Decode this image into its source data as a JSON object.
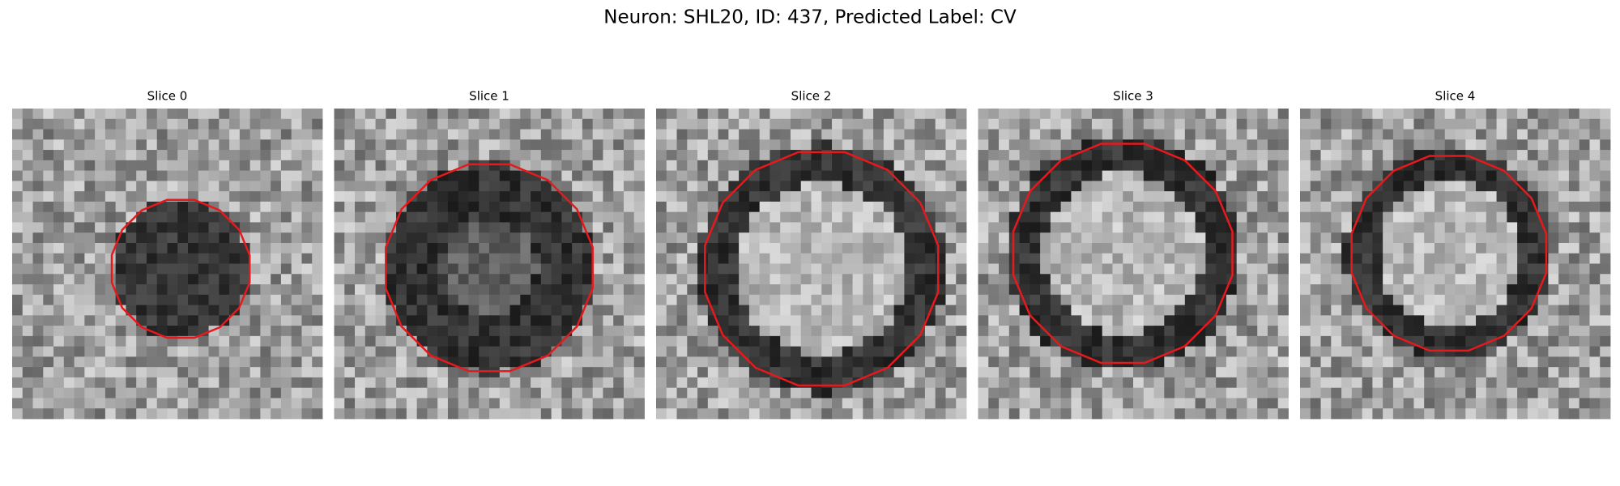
{
  "title": "Neuron: SHL20, ID: 437, Predicted Label: CV",
  "panels": [
    {
      "title": "Slice 0"
    },
    {
      "title": "Slice 1"
    },
    {
      "title": "Slice 2"
    },
    {
      "title": "Slice 3"
    },
    {
      "title": "Slice 4"
    }
  ]
}
